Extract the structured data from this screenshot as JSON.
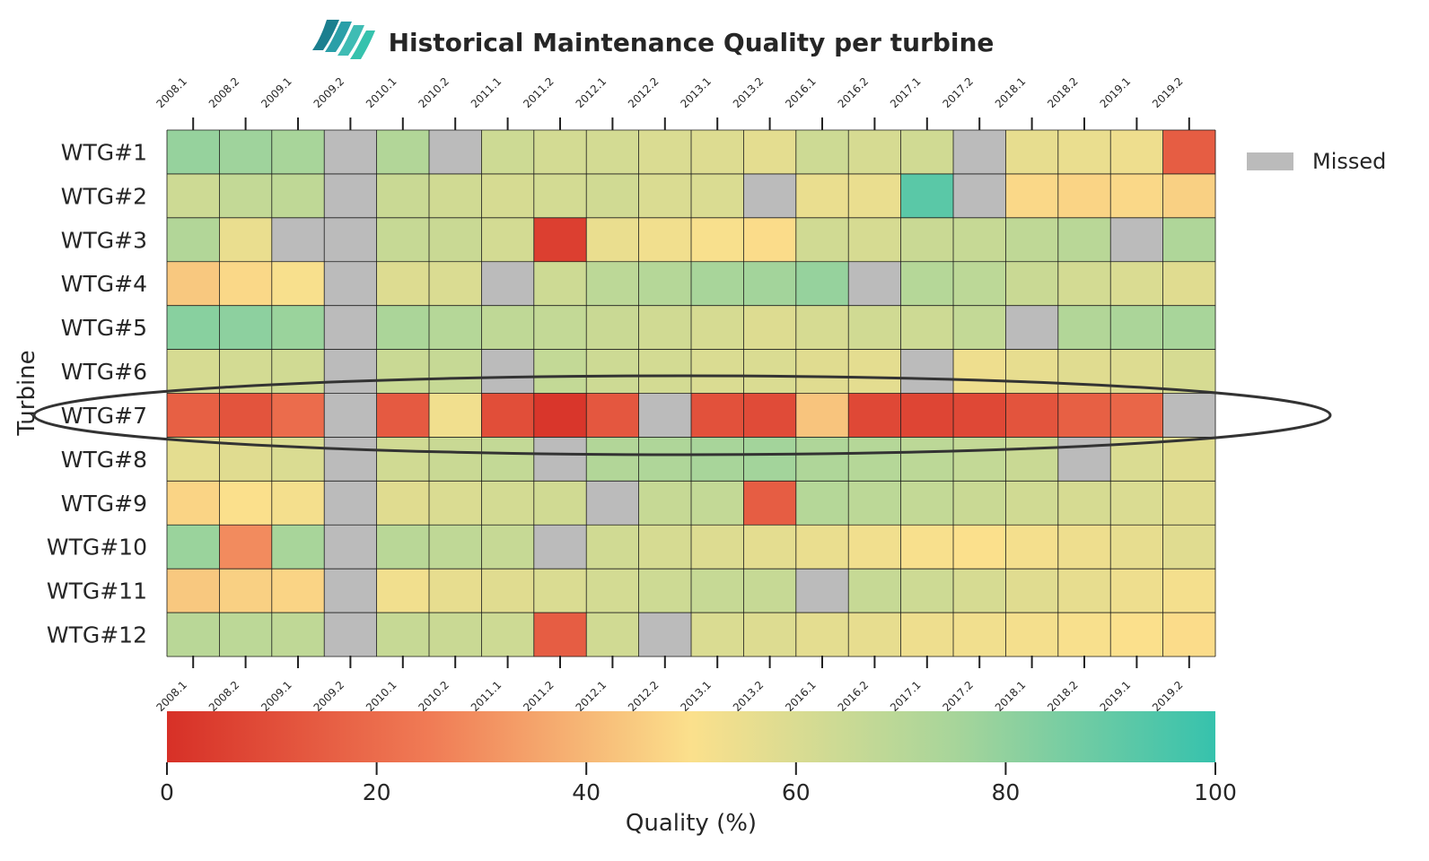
{
  "chart_data": {
    "type": "heatmap",
    "title": "Historical Maintenance Quality per turbine",
    "ylabel": "Turbine",
    "colorbar_label": "Quality (%)",
    "colorbar_range": [
      0,
      100
    ],
    "colorbar_ticks": [
      "0",
      "20",
      "40",
      "60",
      "80",
      "100"
    ],
    "legend": {
      "label": "Missed",
      "color": "#bbbbbb",
      "position": "top-right"
    },
    "annotation": "ellipse around WTG#7",
    "columns": [
      "2008.1",
      "2008.2",
      "2009.1",
      "2009.2",
      "2010.1",
      "2010.2",
      "2011.1",
      "2011.2",
      "2012.1",
      "2012.2",
      "2013.1",
      "2013.2",
      "2016.1",
      "2016.2",
      "2017.1",
      "2017.2",
      "2018.1",
      "2018.2",
      "2019.1",
      "2019.2"
    ],
    "rows": [
      "WTG#1",
      "WTG#2",
      "WTG#3",
      "WTG#4",
      "WTG#5",
      "WTG#6",
      "WTG#7",
      "WTG#8",
      "WTG#9",
      "WTG#10",
      "WTG#11",
      "WTG#12"
    ],
    "values": [
      [
        79,
        77,
        75,
        null,
        72,
        null,
        64,
        62,
        62,
        60,
        59,
        57,
        64,
        61,
        63,
        null,
        56,
        55,
        54,
        15
      ],
      [
        64,
        67,
        68,
        null,
        65,
        63,
        61,
        62,
        63,
        60,
        60,
        null,
        55,
        55,
        92,
        null,
        48,
        47,
        48,
        46
      ],
      [
        72,
        55,
        null,
        null,
        66,
        65,
        62,
        5,
        55,
        53,
        51,
        49,
        63,
        61,
        65,
        66,
        68,
        70,
        null,
        73
      ],
      [
        44,
        48,
        51,
        null,
        59,
        60,
        null,
        64,
        69,
        71,
        75,
        76,
        79,
        null,
        71,
        69,
        65,
        62,
        60,
        58
      ],
      [
        82,
        81,
        78,
        null,
        74,
        71,
        68,
        67,
        65,
        63,
        61,
        59,
        61,
        63,
        64,
        67,
        null,
        72,
        74,
        75
      ],
      [
        61,
        62,
        63,
        null,
        65,
        66,
        null,
        67,
        64,
        62,
        60,
        60,
        58,
        57,
        null,
        54,
        56,
        58,
        59,
        61
      ],
      [
        16,
        12,
        20,
        null,
        14,
        53,
        10,
        2,
        13,
        null,
        11,
        9,
        43,
        8,
        7,
        8,
        12,
        16,
        18,
        null
      ],
      [
        57,
        58,
        60,
        null,
        63,
        65,
        67,
        null,
        72,
        73,
        75,
        76,
        73,
        71,
        69,
        67,
        65,
        null,
        60,
        58
      ],
      [
        47,
        50,
        52,
        null,
        58,
        60,
        62,
        63,
        null,
        66,
        67,
        15,
        71,
        69,
        67,
        65,
        63,
        61,
        60,
        58
      ],
      [
        78,
        29,
        75,
        null,
        70,
        68,
        66,
        null,
        63,
        61,
        59,
        57,
        55,
        53,
        51,
        50,
        52,
        54,
        56,
        58
      ],
      [
        44,
        46,
        47,
        null,
        53,
        56,
        58,
        60,
        62,
        64,
        66,
        66,
        null,
        66,
        64,
        61,
        58,
        56,
        54,
        52
      ],
      [
        70,
        69,
        68,
        null,
        66,
        65,
        64,
        15,
        63,
        null,
        60,
        59,
        57,
        56,
        54,
        53,
        52,
        51,
        50,
        49
      ]
    ]
  }
}
